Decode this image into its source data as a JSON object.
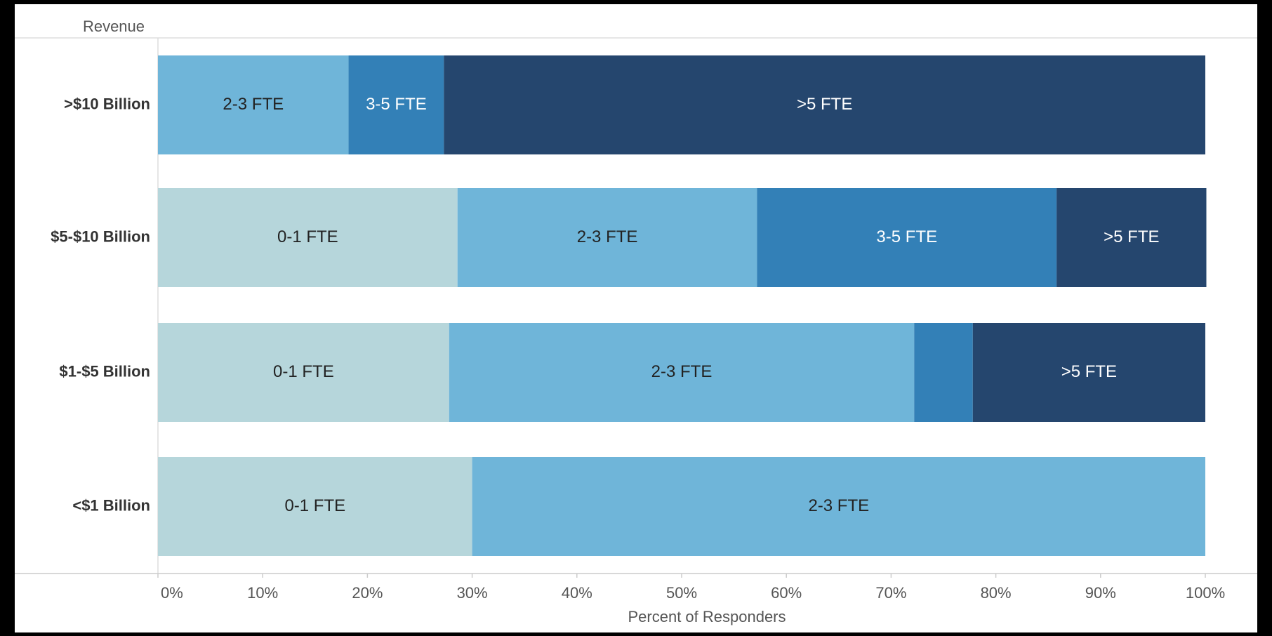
{
  "chart_data": {
    "type": "stacked_bar_horizontal",
    "y_header": "Revenue",
    "x_label": "Percent of Responders",
    "categories": [
      ">$10 Billion",
      "$5-$10 Billion",
      "$1-$5 Billion",
      "<$1 Billion"
    ],
    "series": [
      {
        "name": "0-1 FTE",
        "color": "#b6d6db",
        "values": [
          0,
          28.6,
          27.8,
          30
        ]
      },
      {
        "name": "2-3 FTE",
        "color": "#6fb5d9",
        "values": [
          18.2,
          28.6,
          44.4,
          70
        ]
      },
      {
        "name": "3-5 FTE",
        "color": "#3380b7",
        "values": [
          9.1,
          28.6,
          5.6,
          0
        ]
      },
      {
        "name": ">5 FTE",
        "color": "#25466e",
        "values": [
          72.7,
          14.3,
          22.2,
          0
        ]
      }
    ],
    "xlim": [
      0,
      100
    ],
    "xticks": [
      {
        "value": 0,
        "label": "0%"
      },
      {
        "value": 10,
        "label": "10%"
      },
      {
        "value": 20,
        "label": "20%"
      },
      {
        "value": 30,
        "label": "30%"
      },
      {
        "value": 40,
        "label": "40%"
      },
      {
        "value": 50,
        "label": "50%"
      },
      {
        "value": 60,
        "label": "60%"
      },
      {
        "value": 70,
        "label": "70%"
      },
      {
        "value": 80,
        "label": "80%"
      },
      {
        "value": 90,
        "label": "90%"
      },
      {
        "value": 100,
        "label": "100%"
      }
    ]
  }
}
